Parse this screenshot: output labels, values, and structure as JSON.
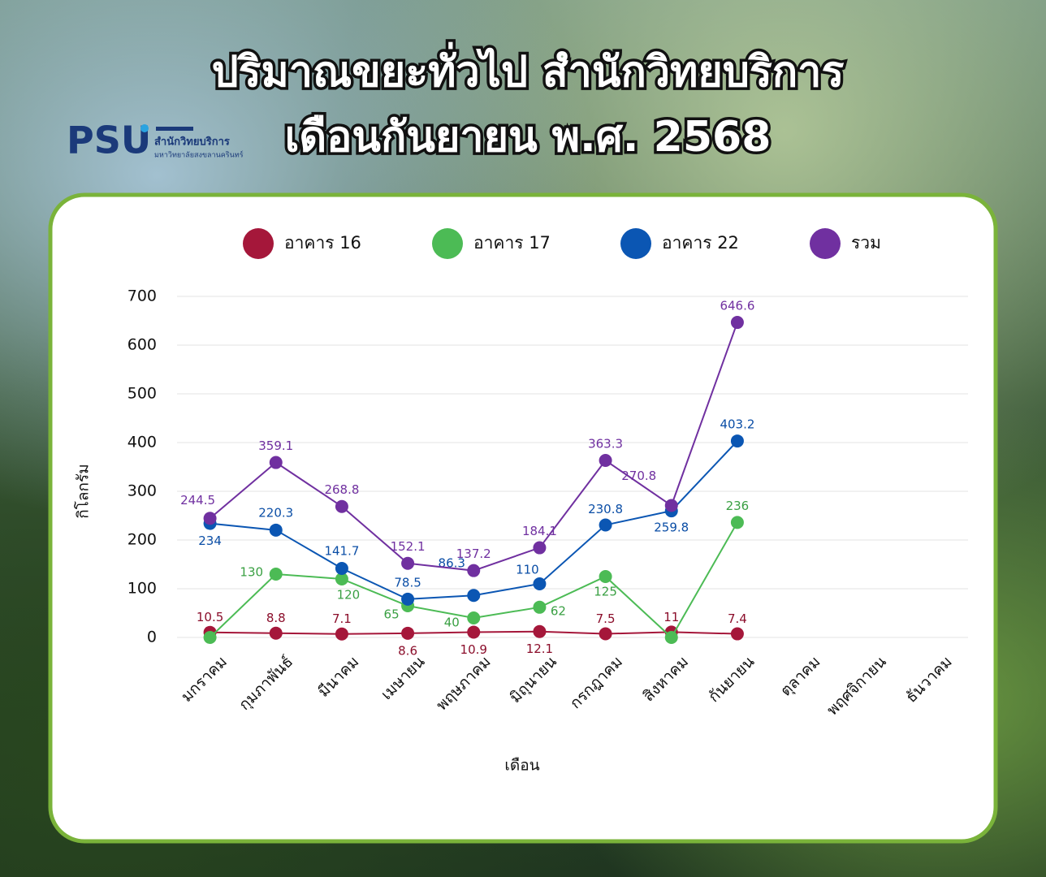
{
  "header": {
    "title_lines": [
      "ปริมาณขยะทั่วไป สำนักวิทยบริการ",
      "เดือนกันยายน พ.ศ. 2568"
    ],
    "logo": {
      "mark": "PSU",
      "name": "สำนักวิทยบริการ",
      "org": "มหาวิทยาลัยสงขลานครินทร์"
    }
  },
  "chart_data": {
    "type": "line",
    "y_label": "กิโลกรัม",
    "x_label": "เดือน",
    "legend": "top",
    "grid": true,
    "categories": [
      "มกราคม",
      "กุมภาพันธ์",
      "มีนาคม",
      "เมษายน",
      "พฤษภาคม",
      "มิถุนายน",
      "กรกฎาคม",
      "สิงหาคม",
      "กันยายน",
      "ตุลาคม",
      "พฤศจิกายน",
      "ธันวาคม"
    ],
    "ylim": [
      0,
      700
    ],
    "yticks": [
      0,
      100,
      200,
      300,
      400,
      500,
      600,
      700
    ],
    "series": [
      {
        "name": "อาคาร 16",
        "color": "#a5173a",
        "values": [
          10.5,
          8.8,
          7.1,
          8.6,
          10.9,
          12.1,
          7.5,
          11,
          7.4,
          null,
          null,
          null
        ]
      },
      {
        "name": "อาคาร 17",
        "color": "#4cbb55",
        "values": [
          0,
          130,
          120,
          65,
          40,
          62,
          125,
          0,
          236,
          null,
          null,
          null
        ],
        "value_labels": [
          null,
          "130",
          "120",
          "65",
          "40",
          "62",
          "125",
          null,
          "236",
          null,
          null,
          null
        ]
      },
      {
        "name": "อาคาร 22",
        "color": "#0b56b3",
        "values": [
          234,
          220.3,
          141.7,
          78.5,
          86.3,
          110,
          230.8,
          259.8,
          403.2,
          null,
          null,
          null
        ]
      },
      {
        "name": "รวม",
        "color": "#7030a0",
        "values": [
          244.5,
          359.1,
          268.8,
          152.1,
          137.2,
          184.1,
          363.3,
          270.8,
          646.6,
          null,
          null,
          null
        ]
      }
    ]
  }
}
